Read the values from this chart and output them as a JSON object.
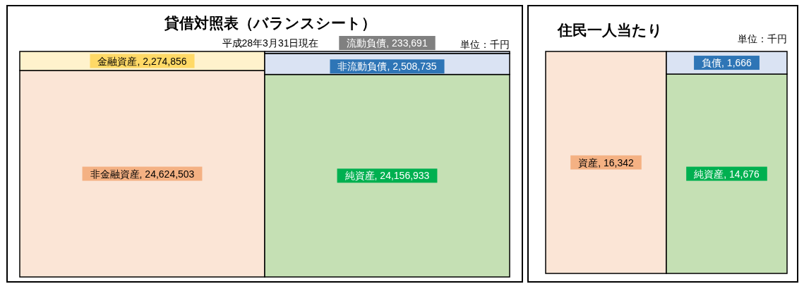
{
  "chart_data": [
    {
      "type": "bar",
      "stacked": true,
      "title": "貸借対照表（バランスシート）",
      "subtitle": "平成28年3月31日現在",
      "annotations": [
        "単位：千円"
      ],
      "categories": [
        null,
        null
      ],
      "series": [
        {
          "color": "#fbe5d6",
          "values": [
            24624503,
            null
          ],
          "value_labels": [
            "非金融資産, 24,624,503",
            null
          ]
        },
        {
          "color": "#fff2cc",
          "values": [
            2274856,
            null
          ],
          "value_labels": [
            "金融資産, 2,274,856",
            null
          ]
        },
        {
          "color": "#c5e0b4",
          "values": [
            null,
            24156933
          ],
          "value_labels": [
            null,
            "純資産, 24,156,933"
          ]
        },
        {
          "color": "#dae3f3",
          "values": [
            null,
            2508735
          ],
          "value_labels": [
            null,
            "非流動負債, 2,508,735"
          ]
        },
        {
          "color": "#dae3f3",
          "values": [
            null,
            233691
          ],
          "value_labels": [
            null,
            "流動負債, 233,691"
          ]
        }
      ]
    },
    {
      "type": "bar",
      "stacked": true,
      "title": "住民一人当たり",
      "annotations": [
        "単位：千円"
      ],
      "categories": [
        null,
        null
      ],
      "series": [
        {
          "color": "#fbe5d6",
          "values": [
            16342,
            null
          ],
          "value_labels": [
            "資産, 16,342",
            null
          ]
        },
        {
          "color": "#c5e0b4",
          "values": [
            null,
            14676
          ],
          "value_labels": [
            null,
            "純資産, 14,676"
          ]
        },
        {
          "color": "#dae3f3",
          "values": [
            null,
            1666
          ],
          "value_labels": [
            null,
            "負債, 1,666"
          ]
        }
      ]
    }
  ]
}
